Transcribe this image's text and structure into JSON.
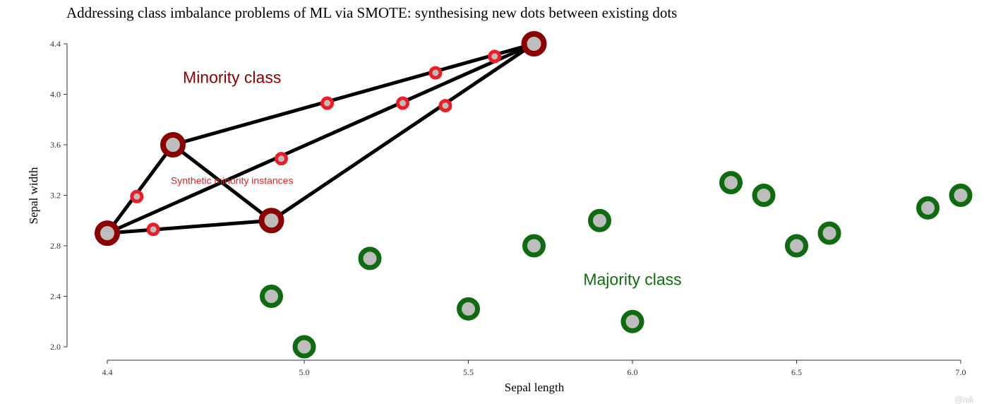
{
  "chart_data": {
    "type": "scatter",
    "title": "Addressing class imbalance problems of ML via SMOTE: synthesising new dots between existing dots",
    "xlabel": "Sepal length",
    "ylabel": "Sepal width",
    "xlim": [
      4.4,
      7.0
    ],
    "ylim": [
      2.0,
      4.4
    ],
    "x_ticks": [
      "4.4",
      "5.0",
      "5.5",
      "6.0",
      "6.5",
      "7.0"
    ],
    "x_tick_values": [
      4.4,
      5.0,
      5.5,
      6.0,
      6.5,
      7.0
    ],
    "y_ticks": [
      "2.0",
      "2.4",
      "2.8",
      "3.2",
      "3.6",
      "4.0",
      "4.4"
    ],
    "y_tick_values": [
      2.0,
      2.4,
      2.8,
      3.2,
      3.6,
      4.0,
      4.4
    ],
    "grid": false,
    "series": [
      {
        "name": "Minority class",
        "color": "#8b0000",
        "points": [
          {
            "x": 4.4,
            "y": 2.9
          },
          {
            "x": 4.6,
            "y": 3.6
          },
          {
            "x": 4.9,
            "y": 3.0
          },
          {
            "x": 5.7,
            "y": 4.4
          }
        ]
      },
      {
        "name": "Majority class",
        "color": "#0f6b0f",
        "points": [
          {
            "x": 4.9,
            "y": 2.4
          },
          {
            "x": 5.0,
            "y": 2.0
          },
          {
            "x": 5.2,
            "y": 2.7
          },
          {
            "x": 5.5,
            "y": 2.3
          },
          {
            "x": 5.7,
            "y": 2.8
          },
          {
            "x": 5.9,
            "y": 3.0
          },
          {
            "x": 6.0,
            "y": 2.2
          },
          {
            "x": 6.3,
            "y": 3.3
          },
          {
            "x": 6.4,
            "y": 3.2
          },
          {
            "x": 6.5,
            "y": 2.8
          },
          {
            "x": 6.6,
            "y": 2.9
          },
          {
            "x": 6.9,
            "y": 3.1
          },
          {
            "x": 7.0,
            "y": 3.2
          }
        ]
      },
      {
        "name": "Synthetic minority instances",
        "color": "#ee1c25",
        "points": [
          {
            "x": 4.49,
            "y": 3.19
          },
          {
            "x": 4.54,
            "y": 2.93
          },
          {
            "x": 4.93,
            "y": 3.49
          },
          {
            "x": 5.07,
            "y": 3.93
          },
          {
            "x": 5.3,
            "y": 3.93
          },
          {
            "x": 5.4,
            "y": 4.17
          },
          {
            "x": 5.43,
            "y": 3.91
          },
          {
            "x": 5.58,
            "y": 4.3
          }
        ]
      }
    ],
    "connections": [
      [
        [
          4.4,
          2.9
        ],
        [
          4.6,
          3.6
        ]
      ],
      [
        [
          4.4,
          2.9
        ],
        [
          4.9,
          3.0
        ]
      ],
      [
        [
          4.4,
          2.9
        ],
        [
          5.7,
          4.4
        ]
      ],
      [
        [
          4.6,
          3.6
        ],
        [
          4.9,
          3.0
        ]
      ],
      [
        [
          4.6,
          3.6
        ],
        [
          5.7,
          4.4
        ]
      ],
      [
        [
          4.9,
          3.0
        ],
        [
          5.7,
          4.4
        ]
      ]
    ],
    "annotations": [
      {
        "text": "Minority class",
        "x": 4.78,
        "y": 4.09,
        "color": "#8b0000",
        "size": "large"
      },
      {
        "text": "Majority class",
        "x": 6.0,
        "y": 2.49,
        "color": "#0f6b0f",
        "size": "large"
      },
      {
        "text": "Synthetic minority instances",
        "x": 4.78,
        "y": 3.29,
        "color": "#ee1c25",
        "size": "small"
      }
    ],
    "watermark": "@nik"
  }
}
